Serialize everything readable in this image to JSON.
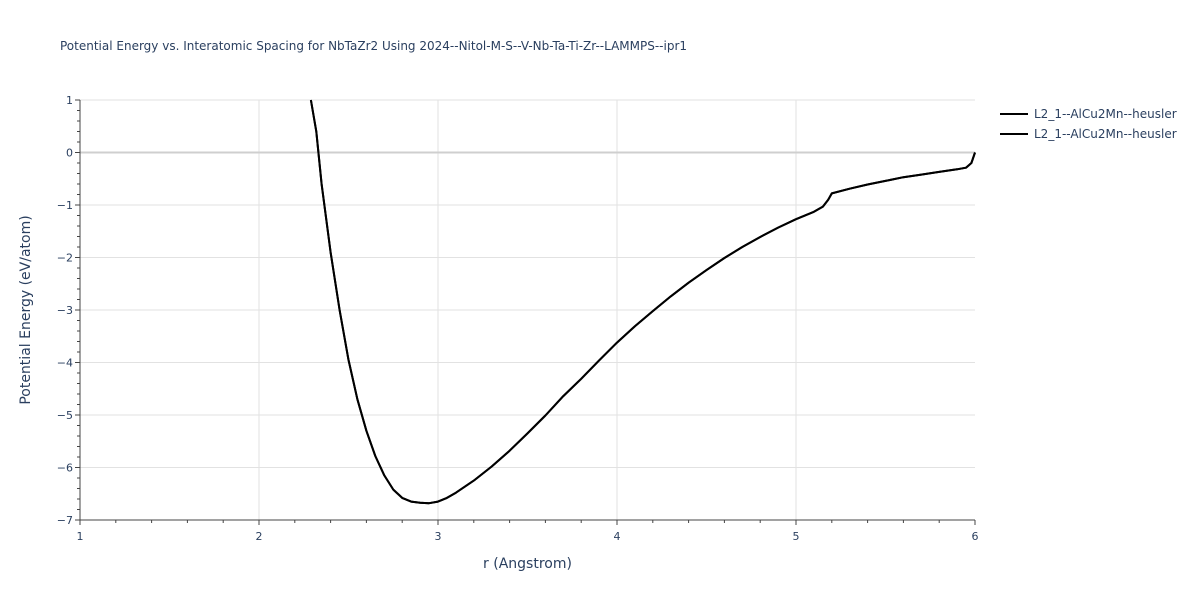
{
  "chart_data": {
    "type": "line",
    "title": "Potential Energy vs. Interatomic Spacing for NbTaZr2 Using 2024--Nitol-M-S--V-Nb-Ta-Ti-Zr--LAMMPS--ipr1",
    "xlabel": "r (Angstrom)",
    "ylabel": "Potential Energy (eV/atom)",
    "xlim": [
      1,
      6
    ],
    "ylim": [
      -7,
      1
    ],
    "x_ticks": [
      "1",
      "2",
      "3",
      "4",
      "5",
      "6"
    ],
    "y_ticks": [
      "1",
      "0",
      "−1",
      "−2",
      "−3",
      "−4",
      "−5",
      "−6",
      "−7"
    ],
    "grid": true,
    "legend_position": "top-right",
    "line_color": "#000000",
    "series": [
      {
        "name": "L2_1--AlCu2Mn--heusler",
        "x": [
          2.29,
          2.32,
          2.35,
          2.4,
          2.45,
          2.5,
          2.55,
          2.6,
          2.65,
          2.7,
          2.75,
          2.8,
          2.85,
          2.9,
          2.95,
          3.0,
          3.05,
          3.1,
          3.2,
          3.3,
          3.4,
          3.5,
          3.6,
          3.7,
          3.8,
          3.9,
          4.0,
          4.1,
          4.2,
          4.3,
          4.4,
          4.5,
          4.6,
          4.7,
          4.8,
          4.9,
          5.0,
          5.1,
          5.15,
          5.18,
          5.2,
          5.3,
          5.4,
          5.5,
          5.6,
          5.7,
          5.8,
          5.9,
          5.95,
          5.98,
          6.0
        ],
        "y": [
          1.0,
          0.4,
          -0.6,
          -1.9,
          -3.0,
          -3.95,
          -4.7,
          -5.3,
          -5.78,
          -6.15,
          -6.42,
          -6.58,
          -6.65,
          -6.67,
          -6.68,
          -6.65,
          -6.58,
          -6.48,
          -6.25,
          -5.98,
          -5.68,
          -5.35,
          -5.01,
          -4.64,
          -4.31,
          -3.96,
          -3.62,
          -3.31,
          -3.02,
          -2.74,
          -2.48,
          -2.24,
          -2.01,
          -1.8,
          -1.61,
          -1.43,
          -1.27,
          -1.13,
          -1.03,
          -0.9,
          -0.78,
          -0.69,
          -0.61,
          -0.54,
          -0.47,
          -0.42,
          -0.37,
          -0.32,
          -0.29,
          -0.2,
          0.0
        ]
      },
      {
        "name": "L2_1--AlCu2Mn--heusler",
        "x": [
          2.29,
          2.32,
          2.35,
          2.4,
          2.45,
          2.5,
          2.55,
          2.6,
          2.65,
          2.7,
          2.75,
          2.8,
          2.85,
          2.9,
          2.95,
          3.0,
          3.05,
          3.1,
          3.2,
          3.3,
          3.4,
          3.5,
          3.6,
          3.7,
          3.8,
          3.9,
          4.0,
          4.1,
          4.2,
          4.3,
          4.4,
          4.5,
          4.6,
          4.7,
          4.8,
          4.9,
          5.0,
          5.1,
          5.15,
          5.18,
          5.2,
          5.3,
          5.4,
          5.5,
          5.6,
          5.7,
          5.8,
          5.9,
          5.95,
          5.98,
          6.0
        ],
        "y": [
          1.0,
          0.4,
          -0.6,
          -1.9,
          -3.0,
          -3.95,
          -4.7,
          -5.3,
          -5.78,
          -6.15,
          -6.42,
          -6.58,
          -6.65,
          -6.67,
          -6.68,
          -6.65,
          -6.58,
          -6.48,
          -6.25,
          -5.98,
          -5.68,
          -5.35,
          -5.01,
          -4.64,
          -4.31,
          -3.96,
          -3.62,
          -3.31,
          -3.02,
          -2.74,
          -2.48,
          -2.24,
          -2.01,
          -1.8,
          -1.61,
          -1.43,
          -1.27,
          -1.13,
          -1.03,
          -0.9,
          -0.78,
          -0.69,
          -0.61,
          -0.54,
          -0.47,
          -0.42,
          -0.37,
          -0.32,
          -0.29,
          -0.2,
          0.0
        ]
      }
    ]
  }
}
